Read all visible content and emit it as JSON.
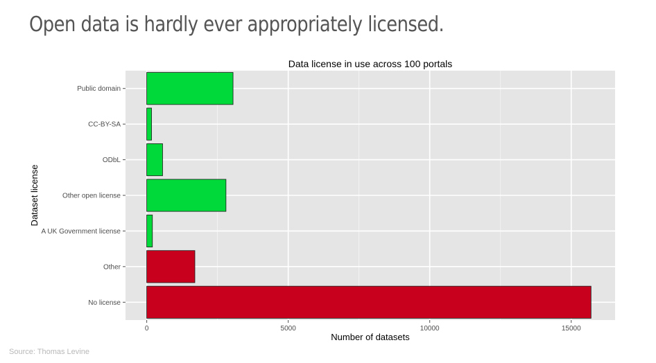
{
  "slide": {
    "title": "Open data is hardly ever appropriately licensed.",
    "source": "Source: Thomas Levine"
  },
  "colors": {
    "open": "#00d93a",
    "closed": "#c8001e",
    "panel": "#e5e5e5",
    "grid": "#ffffff"
  },
  "chart_data": {
    "type": "bar",
    "orientation": "horizontal",
    "title": "Data license in use across 100 portals",
    "xlabel": "Number of datasets",
    "ylabel": "Dataset license",
    "categories": [
      "Public domain",
      "CC-BY-SA",
      "ODbL",
      "Other open license",
      "A UK Government license",
      "Other",
      "No license"
    ],
    "values": [
      3050,
      170,
      560,
      2800,
      200,
      1700,
      15700
    ],
    "bar_colors": [
      "#00d93a",
      "#00d93a",
      "#00d93a",
      "#00d93a",
      "#00d93a",
      "#c8001e",
      "#c8001e"
    ],
    "xlim": [
      -750,
      16550
    ],
    "xticks": [
      0,
      5000,
      10000,
      15000
    ],
    "grid": true,
    "legend": "none"
  }
}
